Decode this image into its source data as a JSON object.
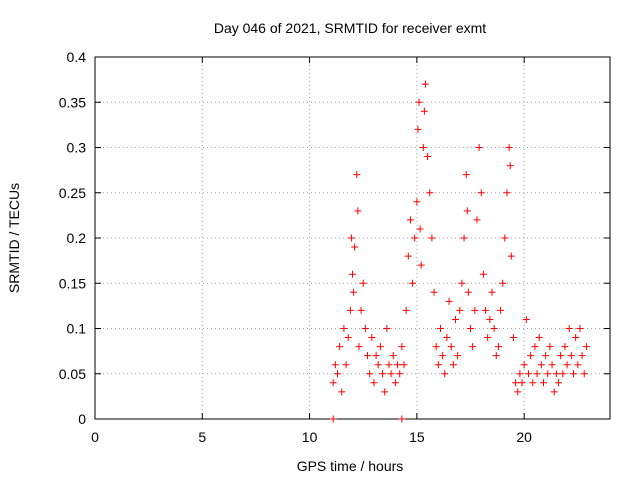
{
  "chart_data": {
    "type": "scatter",
    "title": "Day 046 of 2021, SRMTID for receiver exmt",
    "xlabel": "GPS time / hours",
    "ylabel": "SRMTID / TECUs",
    "xlim": [
      0,
      24
    ],
    "ylim": [
      0,
      0.4
    ],
    "xticks": [
      0,
      5,
      10,
      15,
      20
    ],
    "xtick_labels": [
      "0",
      "5",
      "10",
      "15",
      "20"
    ],
    "yticks": [
      0,
      0.05,
      0.1,
      0.15,
      0.2,
      0.25,
      0.3,
      0.35,
      0.4
    ],
    "ytick_labels": [
      "0",
      "0.05",
      "0.1",
      "0.15",
      "0.2",
      "0.25",
      "0.3",
      "0.35",
      "0.4"
    ],
    "grid": true,
    "marker": "+",
    "marker_color": "#ff0000",
    "series": [
      {
        "name": "SRMTID",
        "points": [
          [
            11.1,
            0.0
          ],
          [
            14.3,
            0.0
          ],
          [
            11.1,
            0.04
          ],
          [
            11.2,
            0.06
          ],
          [
            11.3,
            0.05
          ],
          [
            11.4,
            0.08
          ],
          [
            11.5,
            0.03
          ],
          [
            11.6,
            0.1
          ],
          [
            11.7,
            0.06
          ],
          [
            11.8,
            0.09
          ],
          [
            11.9,
            0.12
          ],
          [
            11.95,
            0.2
          ],
          [
            12.0,
            0.16
          ],
          [
            12.05,
            0.14
          ],
          [
            12.1,
            0.19
          ],
          [
            12.2,
            0.27
          ],
          [
            12.25,
            0.23
          ],
          [
            12.3,
            0.08
          ],
          [
            12.4,
            0.12
          ],
          [
            12.5,
            0.15
          ],
          [
            12.6,
            0.1
          ],
          [
            12.7,
            0.07
          ],
          [
            12.8,
            0.05
          ],
          [
            12.9,
            0.09
          ],
          [
            13.0,
            0.04
          ],
          [
            13.1,
            0.07
          ],
          [
            13.2,
            0.06
          ],
          [
            13.3,
            0.08
          ],
          [
            13.4,
            0.05
          ],
          [
            13.5,
            0.03
          ],
          [
            13.6,
            0.1
          ],
          [
            13.7,
            0.06
          ],
          [
            13.8,
            0.05
          ],
          [
            13.9,
            0.07
          ],
          [
            14.0,
            0.04
          ],
          [
            14.1,
            0.06
          ],
          [
            14.2,
            0.05
          ],
          [
            14.3,
            0.08
          ],
          [
            14.4,
            0.06
          ],
          [
            14.5,
            0.12
          ],
          [
            14.6,
            0.18
          ],
          [
            14.7,
            0.22
          ],
          [
            14.8,
            0.15
          ],
          [
            14.9,
            0.2
          ],
          [
            15.0,
            0.24
          ],
          [
            15.05,
            0.32
          ],
          [
            15.1,
            0.35
          ],
          [
            15.15,
            0.21
          ],
          [
            15.2,
            0.17
          ],
          [
            15.3,
            0.3
          ],
          [
            15.35,
            0.34
          ],
          [
            15.4,
            0.37
          ],
          [
            15.5,
            0.29
          ],
          [
            15.6,
            0.25
          ],
          [
            15.7,
            0.2
          ],
          [
            15.8,
            0.14
          ],
          [
            15.9,
            0.08
          ],
          [
            16.0,
            0.06
          ],
          [
            16.1,
            0.1
          ],
          [
            16.2,
            0.07
          ],
          [
            16.3,
            0.05
          ],
          [
            16.4,
            0.09
          ],
          [
            16.5,
            0.13
          ],
          [
            16.6,
            0.08
          ],
          [
            16.7,
            0.06
          ],
          [
            16.8,
            0.11
          ],
          [
            16.9,
            0.07
          ],
          [
            17.0,
            0.12
          ],
          [
            17.1,
            0.15
          ],
          [
            17.2,
            0.2
          ],
          [
            17.3,
            0.27
          ],
          [
            17.35,
            0.23
          ],
          [
            17.4,
            0.14
          ],
          [
            17.5,
            0.1
          ],
          [
            17.6,
            0.08
          ],
          [
            17.7,
            0.12
          ],
          [
            17.8,
            0.22
          ],
          [
            17.9,
            0.3
          ],
          [
            18.0,
            0.25
          ],
          [
            18.1,
            0.16
          ],
          [
            18.2,
            0.12
          ],
          [
            18.3,
            0.09
          ],
          [
            18.4,
            0.11
          ],
          [
            18.5,
            0.14
          ],
          [
            18.6,
            0.1
          ],
          [
            18.7,
            0.07
          ],
          [
            18.8,
            0.08
          ],
          [
            18.9,
            0.12
          ],
          [
            19.0,
            0.15
          ],
          [
            19.1,
            0.2
          ],
          [
            19.2,
            0.25
          ],
          [
            19.3,
            0.3
          ],
          [
            19.35,
            0.28
          ],
          [
            19.4,
            0.18
          ],
          [
            19.5,
            0.09
          ],
          [
            19.6,
            0.04
          ],
          [
            19.7,
            0.03
          ],
          [
            19.8,
            0.05
          ],
          [
            19.9,
            0.04
          ],
          [
            20.0,
            0.06
          ],
          [
            20.1,
            0.11
          ],
          [
            20.2,
            0.05
          ],
          [
            20.3,
            0.07
          ],
          [
            20.4,
            0.04
          ],
          [
            20.5,
            0.08
          ],
          [
            20.6,
            0.05
          ],
          [
            20.7,
            0.09
          ],
          [
            20.8,
            0.06
          ],
          [
            20.9,
            0.04
          ],
          [
            21.0,
            0.07
          ],
          [
            21.1,
            0.05
          ],
          [
            21.2,
            0.08
          ],
          [
            21.3,
            0.06
          ],
          [
            21.4,
            0.03
          ],
          [
            21.5,
            0.05
          ],
          [
            21.6,
            0.04
          ],
          [
            21.7,
            0.07
          ],
          [
            21.8,
            0.05
          ],
          [
            21.9,
            0.08
          ],
          [
            22.0,
            0.06
          ],
          [
            22.1,
            0.1
          ],
          [
            22.2,
            0.07
          ],
          [
            22.3,
            0.05
          ],
          [
            22.4,
            0.09
          ],
          [
            22.5,
            0.06
          ],
          [
            22.6,
            0.1
          ],
          [
            22.7,
            0.07
          ],
          [
            22.8,
            0.05
          ],
          [
            22.9,
            0.08
          ]
        ]
      }
    ]
  }
}
